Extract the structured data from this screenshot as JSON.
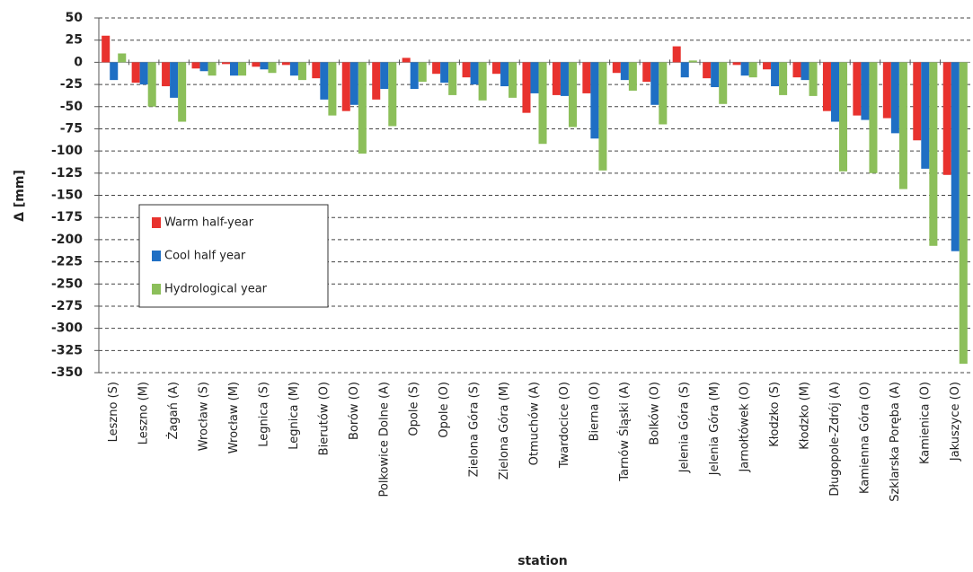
{
  "chart_data": {
    "type": "bar",
    "xlabel": "station",
    "ylabel": "Δ [mm]",
    "categories": [
      "Leszno (S)",
      "Leszno (M)",
      "Żagań (A)",
      "Wrocław (S)",
      "Wrocław (M)",
      "Legnica (S)",
      "Legnica (M)",
      "Bierutów (O)",
      "Borów (O)",
      "Polkowice Dolne (A)",
      "Opole (S)",
      "Opole (O)",
      "Zielona Góra (S)",
      "Zielona Góra (M)",
      "Otmuchów (A)",
      "Twardocice (O)",
      "Bierna (O)",
      "Tarnów Śląski (A)",
      "Bolków (O)",
      "Jelenia Góra (S)",
      "Jelenia Góra (M)",
      "Jarnołtówek (O)",
      "Kłodzko (S)",
      "Kłodzko (M)",
      "Długopole-Zdrój (A)",
      "Kamienna Góra (O)",
      "Szklarska Poręba (A)",
      "Kamienica (O)",
      "Jakuszyce (O)"
    ],
    "series": [
      {
        "name": "Warm half-year",
        "color": "#e8322e",
        "values": [
          30,
          -23,
          -27,
          -7,
          -2,
          -5,
          -3,
          -18,
          -55,
          -42,
          5,
          -13,
          -17,
          -13,
          -57,
          -37,
          -35,
          -12,
          -22,
          18,
          -18,
          -3,
          -8,
          -17,
          -55,
          -60,
          -63,
          -88,
          -127
        ]
      },
      {
        "name": "Cool half year",
        "color": "#1f6fc4",
        "values": [
          -20,
          -25,
          -40,
          -10,
          -15,
          -8,
          -15,
          -42,
          -48,
          -30,
          -30,
          -23,
          -25,
          -27,
          -35,
          -38,
          -86,
          -20,
          -48,
          -17,
          -28,
          -15,
          -27,
          -20,
          -67,
          -65,
          -80,
          -120,
          -213
        ]
      },
      {
        "name": "Hydrological year",
        "color": "#8cbf5a",
        "values": [
          10,
          -50,
          -67,
          -15,
          -15,
          -12,
          -20,
          -60,
          -103,
          -72,
          -22,
          -37,
          -43,
          -40,
          -92,
          -73,
          -122,
          -32,
          -70,
          2,
          -47,
          -17,
          -37,
          -38,
          -123,
          -125,
          -143,
          -207,
          -340
        ]
      }
    ],
    "ylim": [
      -350,
      50
    ],
    "yticks": [
      50,
      25,
      0,
      -25,
      -50,
      -75,
      -100,
      -125,
      -150,
      -175,
      -200,
      -225,
      -250,
      -275,
      -300,
      -325,
      -350
    ],
    "grid": true
  }
}
